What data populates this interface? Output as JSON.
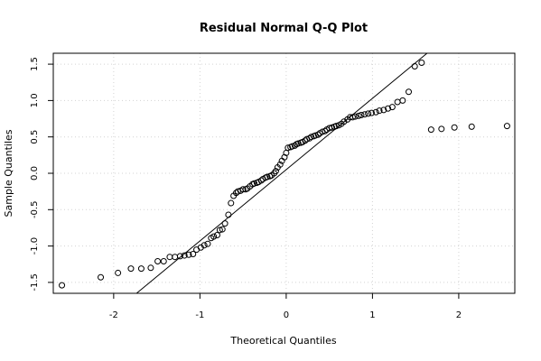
{
  "chart_data": {
    "type": "scatter",
    "title": "Residual Normal Q-Q Plot",
    "xlabel": "Theoretical Quantiles",
    "ylabel": "Sample Quantiles",
    "xlim": [
      -2.7,
      2.65
    ],
    "ylim": [
      -1.65,
      1.65
    ],
    "x_ticks": [
      -2,
      -1,
      0,
      1,
      2
    ],
    "x_tick_labels": [
      "-2",
      "-1",
      "0",
      "1",
      "2"
    ],
    "y_ticks": [
      -1.5,
      -1.0,
      -0.5,
      0.0,
      0.5,
      1.0,
      1.5
    ],
    "y_tick_labels": [
      "-1.5",
      "-1.0",
      "-0.5",
      "0.0",
      "0.5",
      "1.0",
      "1.5"
    ],
    "grid": true,
    "reference_line": {
      "intercept": 0.05,
      "slope": 0.98
    },
    "points": {
      "x": [
        -2.6,
        -2.15,
        -1.95,
        -1.8,
        -1.68,
        -1.57,
        -1.49,
        -1.42,
        -1.35,
        -1.29,
        -1.23,
        -1.18,
        -1.13,
        -1.08,
        -1.04,
        -0.99,
        -0.95,
        -0.91,
        -0.87,
        -0.84,
        -0.8,
        -0.77,
        -0.74,
        -0.71,
        -0.67,
        -0.64,
        -0.61,
        -0.58,
        -0.56,
        -0.53,
        -0.5,
        -0.47,
        -0.45,
        -0.42,
        -0.39,
        -0.37,
        -0.34,
        -0.32,
        -0.29,
        -0.27,
        -0.24,
        -0.22,
        -0.19,
        -0.17,
        -0.14,
        -0.12,
        -0.1,
        -0.07,
        -0.05,
        -0.02,
        0.0,
        0.02,
        0.05,
        0.07,
        0.1,
        0.12,
        0.14,
        0.17,
        0.19,
        0.22,
        0.24,
        0.27,
        0.29,
        0.32,
        0.34,
        0.37,
        0.39,
        0.42,
        0.45,
        0.47,
        0.5,
        0.53,
        0.56,
        0.58,
        0.61,
        0.64,
        0.67,
        0.71,
        0.74,
        0.77,
        0.8,
        0.84,
        0.87,
        0.91,
        0.95,
        0.99,
        1.04,
        1.08,
        1.13,
        1.18,
        1.23,
        1.29,
        1.35,
        1.42,
        1.49,
        1.57,
        1.68,
        1.8,
        1.95,
        2.15,
        2.56
      ],
      "y": [
        -1.54,
        -1.43,
        -1.37,
        -1.31,
        -1.31,
        -1.3,
        -1.21,
        -1.21,
        -1.15,
        -1.15,
        -1.14,
        -1.13,
        -1.12,
        -1.11,
        -1.05,
        -1.02,
        -0.99,
        -0.97,
        -0.89,
        -0.87,
        -0.85,
        -0.78,
        -0.77,
        -0.69,
        -0.57,
        -0.41,
        -0.31,
        -0.27,
        -0.25,
        -0.24,
        -0.22,
        -0.22,
        -0.21,
        -0.18,
        -0.15,
        -0.14,
        -0.13,
        -0.12,
        -0.1,
        -0.08,
        -0.06,
        -0.05,
        -0.04,
        -0.03,
        0.0,
        0.03,
        0.08,
        0.12,
        0.17,
        0.22,
        0.28,
        0.35,
        0.36,
        0.37,
        0.38,
        0.4,
        0.41,
        0.42,
        0.43,
        0.45,
        0.47,
        0.48,
        0.5,
        0.51,
        0.52,
        0.53,
        0.55,
        0.57,
        0.58,
        0.6,
        0.62,
        0.63,
        0.64,
        0.65,
        0.66,
        0.68,
        0.71,
        0.74,
        0.77,
        0.77,
        0.78,
        0.79,
        0.8,
        0.81,
        0.82,
        0.83,
        0.84,
        0.86,
        0.87,
        0.89,
        0.91,
        0.98,
        1.0,
        1.12,
        1.47,
        1.52,
        0.6,
        0.61,
        0.63,
        0.64,
        0.65
      ]
    }
  }
}
